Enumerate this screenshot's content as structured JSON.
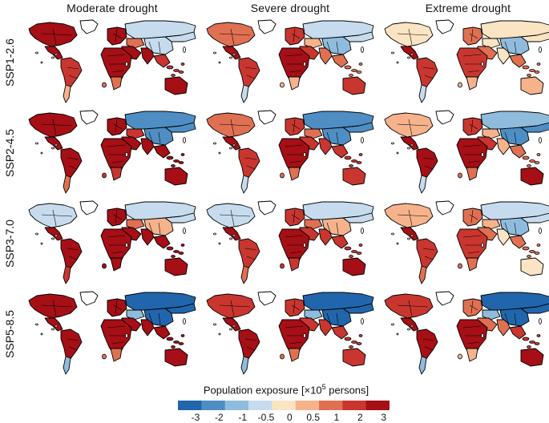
{
  "columns": [
    "Moderate drought",
    "Severe drought",
    "Extreme drought"
  ],
  "rows": [
    "SSP1-2.6",
    "SSP2-4.5",
    "SSP3-7.0",
    "SSP5-8.5"
  ],
  "legend": {
    "title_prefix": "Population exposure [×10",
    "title_exp": "5",
    "title_suffix": " persons]",
    "colors": [
      "#2166ac",
      "#4e8ec4",
      "#8fbcdd",
      "#c6dcee",
      "#fbe4c3",
      "#f6b38b",
      "#e07052",
      "#c9362f",
      "#a50f15"
    ],
    "ticks": [
      "-3",
      "-2",
      "-1",
      "-0.5",
      "0",
      "0.5",
      "1",
      "2",
      "3"
    ]
  },
  "panels": [
    [
      {
        "na": 8,
        "ca": 8,
        "sa": 7,
        "sa_s": 5,
        "eu": 8,
        "ru": 3,
        "ru_e": 3,
        "ca2": 6,
        "me": 8,
        "af": 8,
        "af_s": 6,
        "in": 8,
        "ch": 3,
        "se": 7,
        "au": 8
      },
      {
        "na": 6,
        "ca": 8,
        "sa": 7,
        "sa_s": 3,
        "eu": 7,
        "ru": 3,
        "ru_e": 3,
        "ca2": 5,
        "me": 7,
        "af": 8,
        "af_s": 5,
        "in": 6,
        "ch": 2,
        "se": 6,
        "au": 7
      },
      {
        "na": 4,
        "ca": 8,
        "sa": 7,
        "sa_s": 3,
        "eu": 6,
        "ru": 4,
        "ru_e": 4,
        "ca2": 4,
        "me": 6,
        "af": 7,
        "af_s": 5,
        "in": 4,
        "ch": 2,
        "se": 6,
        "au": 5
      }
    ],
    [
      {
        "na": 8,
        "ca": 8,
        "sa": 8,
        "sa_s": 6,
        "eu": 8,
        "ru": 1,
        "ru_e": 1,
        "ca2": 7,
        "me": 8,
        "af": 8,
        "af_s": 7,
        "in": 8,
        "ch": 1,
        "se": 8,
        "au": 8
      },
      {
        "na": 6,
        "ca": 8,
        "sa": 7,
        "sa_s": 3,
        "eu": 7,
        "ru": 1,
        "ru_e": 1,
        "ca2": 6,
        "me": 7,
        "af": 8,
        "af_s": 6,
        "in": 7,
        "ch": 1,
        "se": 7,
        "au": 7
      },
      {
        "na": 5,
        "ca": 8,
        "sa": 8,
        "sa_s": 3,
        "eu": 7,
        "ru": 2,
        "ru_e": 1,
        "ca2": 5,
        "me": 7,
        "af": 8,
        "af_s": 6,
        "in": 5,
        "ch": 1,
        "se": 6,
        "au": 8
      }
    ],
    [
      {
        "na": 3,
        "ca": 8,
        "sa": 8,
        "sa_s": 7,
        "eu": 8,
        "ru": 3,
        "ru_e": 3,
        "ca2": 6,
        "me": 8,
        "af": 8,
        "af_s": 8,
        "in": 8,
        "ch": 5,
        "se": 8,
        "au": 8
      },
      {
        "na": 3,
        "ca": 8,
        "sa": 7,
        "sa_s": 6,
        "eu": 7,
        "ru": 3,
        "ru_e": 3,
        "ca2": 6,
        "me": 7,
        "af": 8,
        "af_s": 7,
        "in": 7,
        "ch": 5,
        "se": 7,
        "au": 8
      },
      {
        "na": 5,
        "ca": 8,
        "sa": 7,
        "sa_s": 6,
        "eu": 6,
        "ru": 3,
        "ru_e": 3,
        "ca2": 5,
        "me": 6,
        "af": 7,
        "af_s": 6,
        "in": 4,
        "ch": 2,
        "se": 6,
        "au": 4
      }
    ],
    [
      {
        "na": 8,
        "ca": 8,
        "sa": 8,
        "sa_s": 2,
        "eu": 8,
        "ru": 0,
        "ru_e": 0,
        "ca2": 2,
        "me": 8,
        "af": 8,
        "af_s": 6,
        "in": 8,
        "ch": 0,
        "se": 8,
        "au": 8
      },
      {
        "na": 7,
        "ca": 8,
        "sa": 8,
        "sa_s": 2,
        "eu": 7,
        "ru": 0,
        "ru_e": 0,
        "ca2": 2,
        "me": 7,
        "af": 8,
        "af_s": 6,
        "in": 7,
        "ch": 0,
        "se": 7,
        "au": 7
      },
      {
        "na": 7,
        "ca": 8,
        "sa": 8,
        "sa_s": 2,
        "eu": 6,
        "ru": 0,
        "ru_e": 0,
        "ca2": 2,
        "me": 6,
        "af": 8,
        "af_s": 5,
        "in": 6,
        "ch": 0,
        "se": 7,
        "au": 8
      }
    ]
  ]
}
